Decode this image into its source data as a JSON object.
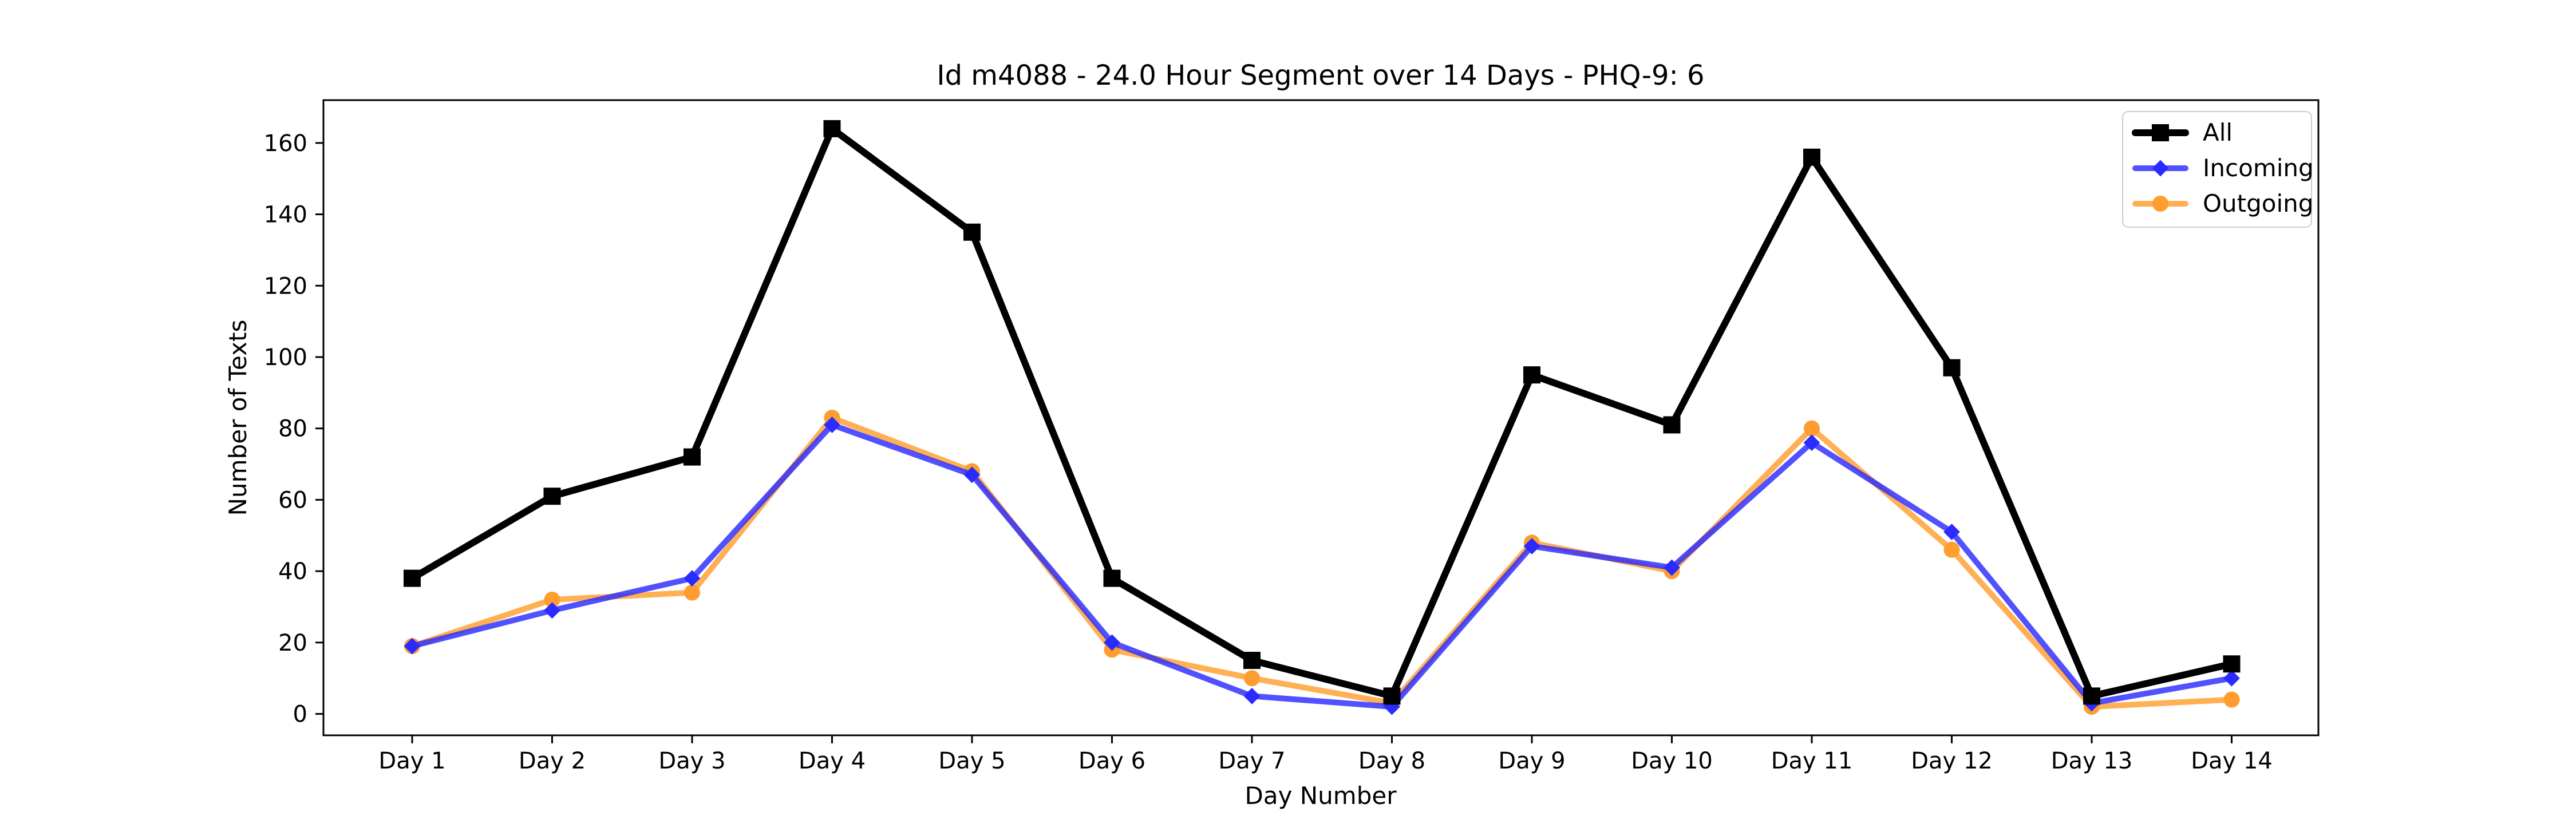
{
  "chart_data": {
    "type": "line",
    "title": "Id m4088 - 24.0 Hour Segment over 14 Days - PHQ-9: 6",
    "xlabel": "Day Number",
    "ylabel": "Number of Texts",
    "categories": [
      "Day 1",
      "Day 2",
      "Day 3",
      "Day 4",
      "Day 5",
      "Day 6",
      "Day 7",
      "Day 8",
      "Day 9",
      "Day 10",
      "Day 11",
      "Day 12",
      "Day 13",
      "Day 14"
    ],
    "ylim": [
      -6,
      172
    ],
    "yticks": [
      0,
      20,
      40,
      60,
      80,
      100,
      120,
      140,
      160
    ],
    "grid": false,
    "legend_position": "top-right",
    "series": [
      {
        "name": "All",
        "color": "#000000",
        "marker": "square",
        "values": [
          38,
          61,
          72,
          164,
          135,
          38,
          15,
          5,
          95,
          81,
          156,
          97,
          5,
          14
        ]
      },
      {
        "name": "Incoming",
        "color": "#2b2bff",
        "marker": "diamond",
        "values": [
          19,
          29,
          38,
          81,
          67,
          20,
          5,
          2,
          47,
          41,
          76,
          51,
          3,
          10
        ]
      },
      {
        "name": "Outgoing",
        "color": "#ff9d2e",
        "marker": "circle",
        "values": [
          19,
          32,
          34,
          83,
          68,
          18,
          10,
          3,
          48,
          40,
          80,
          46,
          2,
          4
        ]
      }
    ]
  }
}
